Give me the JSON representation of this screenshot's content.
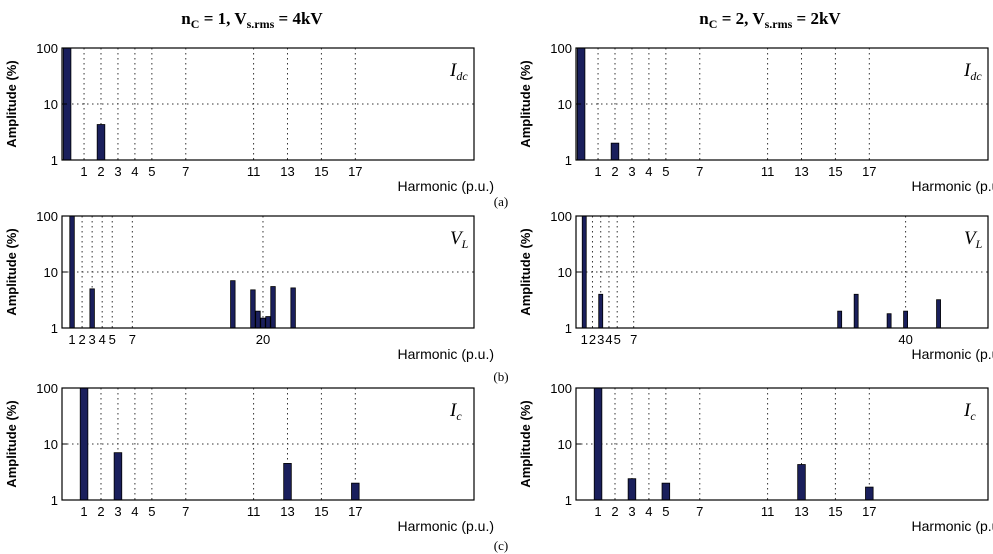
{
  "column_titles": [
    {
      "n": "n",
      "n_sub": "C",
      "n_val": " = 1, ",
      "v": "V",
      "v_sub": "s.rms",
      "v_val": " = 4kV"
    },
    {
      "n": "n",
      "n_sub": "C",
      "n_val": " = 2, ",
      "v": "V",
      "v_sub": "s.rms",
      "v_val": " = 2kV"
    }
  ],
  "row_labels": [
    "(a)",
    "(b)",
    "(c)"
  ],
  "colors": {
    "bar": "#1a1f5c",
    "axis": "#000000",
    "grid": "#333333"
  },
  "chart_data": [
    {
      "type": "bar",
      "row": 0,
      "col": 0,
      "signal": "I",
      "signal_sub": "dc",
      "ylabel": "Amplitude (%)",
      "xlabel": "Harmonic (p.u.)",
      "yscale": "log",
      "ylim": [
        1,
        100
      ],
      "yticks": [
        1,
        10,
        100
      ],
      "xlim": [
        -0.3,
        24
      ],
      "xticks": [
        1,
        2,
        3,
        4,
        5,
        7,
        11,
        13,
        15,
        17
      ],
      "xtick_labels": [
        "1",
        "2",
        "3",
        "4",
        "5",
        "7",
        "11",
        "13",
        "15",
        "17"
      ],
      "x_gridlines": [
        1,
        2,
        3,
        4,
        5,
        7,
        11,
        13,
        15,
        17
      ],
      "y_gridlines": [
        10
      ],
      "bars": [
        {
          "x": 0,
          "value": 100
        },
        {
          "x": 2,
          "value": 4.3
        }
      ]
    },
    {
      "type": "bar",
      "row": 0,
      "col": 1,
      "signal": "I",
      "signal_sub": "dc",
      "ylabel": "Amplitude (%)",
      "xlabel": "Harmonic (p.u.)",
      "yscale": "log",
      "ylim": [
        1,
        100
      ],
      "yticks": [
        1,
        10,
        100
      ],
      "xlim": [
        -0.3,
        24
      ],
      "xticks": [
        1,
        2,
        3,
        4,
        5,
        7,
        11,
        13,
        15,
        17
      ],
      "xtick_labels": [
        "1",
        "2",
        "3",
        "4",
        "5",
        "7",
        "11",
        "13",
        "15",
        "17"
      ],
      "x_gridlines": [
        1,
        2,
        3,
        4,
        5,
        7,
        11,
        13,
        15,
        17
      ],
      "y_gridlines": [
        10
      ],
      "bars": [
        {
          "x": 0,
          "value": 100
        },
        {
          "x": 2,
          "value": 2
        }
      ]
    },
    {
      "type": "bar",
      "row": 1,
      "col": 0,
      "signal": "V",
      "signal_sub": "L",
      "ylabel": "Amplitude (%)",
      "xlabel": "Harmonic (p.u.)",
      "yscale": "log",
      "ylim": [
        1,
        100
      ],
      "yticks": [
        1,
        10,
        100
      ],
      "xlim": [
        0,
        41
      ],
      "xticks": [
        1,
        2,
        3,
        4,
        5,
        7,
        20
      ],
      "xtick_labels": [
        "1",
        "2",
        "3",
        "4",
        "5",
        "7",
        "20"
      ],
      "x_gridlines": [
        1,
        2,
        3,
        4,
        5,
        7,
        20
      ],
      "y_gridlines": [
        10
      ],
      "bars": [
        {
          "x": 1,
          "value": 100
        },
        {
          "x": 3,
          "value": 5
        },
        {
          "x": 17,
          "value": 7
        },
        {
          "x": 19,
          "value": 4.8
        },
        {
          "x": 19.5,
          "value": 2
        },
        {
          "x": 20,
          "value": 1.5
        },
        {
          "x": 20.5,
          "value": 1.6
        },
        {
          "x": 21,
          "value": 5.5
        },
        {
          "x": 23,
          "value": 5.2
        }
      ]
    },
    {
      "type": "bar",
      "row": 1,
      "col": 1,
      "signal": "V",
      "signal_sub": "L",
      "ylabel": "Amplitude (%)",
      "xlabel": "Harmonic (p.u.)",
      "yscale": "log",
      "ylim": [
        1,
        100
      ],
      "yticks": [
        1,
        10,
        100
      ],
      "xlim": [
        0,
        50
      ],
      "xticks": [
        1,
        2,
        3,
        4,
        5,
        7,
        40
      ],
      "xtick_labels": [
        "1",
        "2",
        "3",
        "4",
        "5",
        "7",
        "40"
      ],
      "x_gridlines": [
        1,
        2,
        3,
        4,
        5,
        7,
        40
      ],
      "y_gridlines": [
        10
      ],
      "bars": [
        {
          "x": 1,
          "value": 100
        },
        {
          "x": 3,
          "value": 4
        },
        {
          "x": 32,
          "value": 2
        },
        {
          "x": 34,
          "value": 4
        },
        {
          "x": 38,
          "value": 1.8
        },
        {
          "x": 40,
          "value": 2
        },
        {
          "x": 44,
          "value": 3.2
        }
      ]
    },
    {
      "type": "bar",
      "row": 2,
      "col": 0,
      "signal": "I",
      "signal_sub": "c",
      "ylabel": "Amplitude (%)",
      "xlabel": "Harmonic (p.u.)",
      "yscale": "log",
      "ylim": [
        1,
        100
      ],
      "yticks": [
        1,
        10,
        100
      ],
      "xlim": [
        -0.3,
        24
      ],
      "xticks": [
        1,
        2,
        3,
        4,
        5,
        7,
        11,
        13,
        15,
        17
      ],
      "xtick_labels": [
        "1",
        "2",
        "3",
        "4",
        "5",
        "7",
        "11",
        "13",
        "15",
        "17"
      ],
      "x_gridlines": [
        1,
        2,
        3,
        4,
        5,
        7,
        11,
        13,
        15,
        17
      ],
      "y_gridlines": [
        10
      ],
      "bars": [
        {
          "x": 1,
          "value": 100
        },
        {
          "x": 3,
          "value": 7
        },
        {
          "x": 13,
          "value": 4.5
        },
        {
          "x": 17,
          "value": 2
        }
      ]
    },
    {
      "type": "bar",
      "row": 2,
      "col": 1,
      "signal": "I",
      "signal_sub": "c",
      "ylabel": "Amplitude (%)",
      "xlabel": "Harmonic (p.u.)",
      "yscale": "log",
      "ylim": [
        1,
        100
      ],
      "yticks": [
        1,
        10,
        100
      ],
      "xlim": [
        -0.3,
        24
      ],
      "xticks": [
        1,
        2,
        3,
        4,
        5,
        7,
        11,
        13,
        15,
        17
      ],
      "xtick_labels": [
        "1",
        "2",
        "3",
        "4",
        "5",
        "7",
        "11",
        "13",
        "15",
        "17"
      ],
      "x_gridlines": [
        1,
        2,
        3,
        4,
        5,
        7,
        11,
        13,
        15,
        17
      ],
      "y_gridlines": [
        10
      ],
      "bars": [
        {
          "x": 1,
          "value": 100
        },
        {
          "x": 3,
          "value": 2.4
        },
        {
          "x": 5,
          "value": 2
        },
        {
          "x": 13,
          "value": 4.3
        },
        {
          "x": 17,
          "value": 1.7
        }
      ]
    }
  ]
}
